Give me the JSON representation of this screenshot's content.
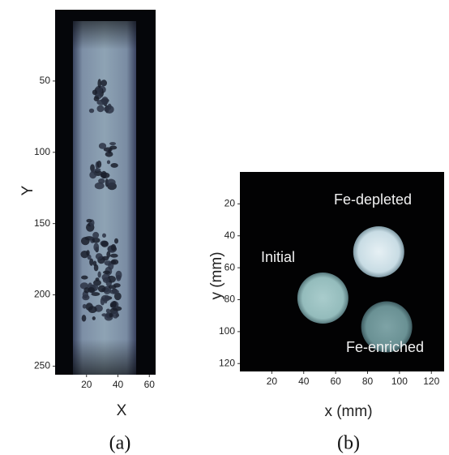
{
  "panels": [
    {
      "caption": "(a)",
      "x_label": "X",
      "y_label": "Y",
      "xlim": [
        0,
        64
      ],
      "ylim": [
        0,
        256
      ],
      "xticks": [
        20,
        40,
        60
      ],
      "yticks": [
        50,
        100,
        150,
        200,
        250
      ]
    },
    {
      "caption": "(b)",
      "x_label": "x (mm)",
      "y_label": "y (mm)",
      "xlim": [
        0,
        128
      ],
      "ylim": [
        0,
        128
      ],
      "xticks": [
        20,
        40,
        60,
        80,
        100,
        120
      ],
      "yticks": [
        20,
        40,
        60,
        80,
        100,
        120
      ],
      "annotations": [
        "Fe-depleted",
        "Initial",
        "Fe-enriched"
      ]
    }
  ]
}
